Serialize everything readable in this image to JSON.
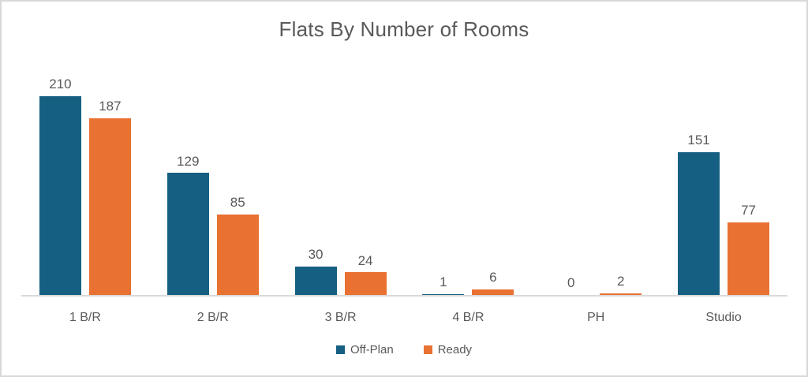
{
  "chart_data": {
    "type": "bar",
    "title": "Flats By Number of Rooms",
    "categories": [
      "1 B/R",
      "2 B/R",
      "3 B/R",
      "4 B/R",
      "PH",
      "Studio"
    ],
    "series": [
      {
        "name": "Off-Plan",
        "color": "#156082",
        "values": [
          210,
          129,
          30,
          1,
          0,
          151
        ]
      },
      {
        "name": "Ready",
        "color": "#E97132",
        "values": [
          187,
          85,
          24,
          6,
          2,
          77
        ]
      }
    ],
    "xlabel": "",
    "ylabel": "",
    "ylim": [
      0,
      215
    ],
    "grid": false,
    "data_labels": true,
    "legend_position": "bottom",
    "colors": {
      "title_text": "#595959",
      "label_text": "#595959",
      "axis_line": "#d9d9d9",
      "frame_border": "#d8d8d8",
      "background": "#ffffff"
    }
  }
}
